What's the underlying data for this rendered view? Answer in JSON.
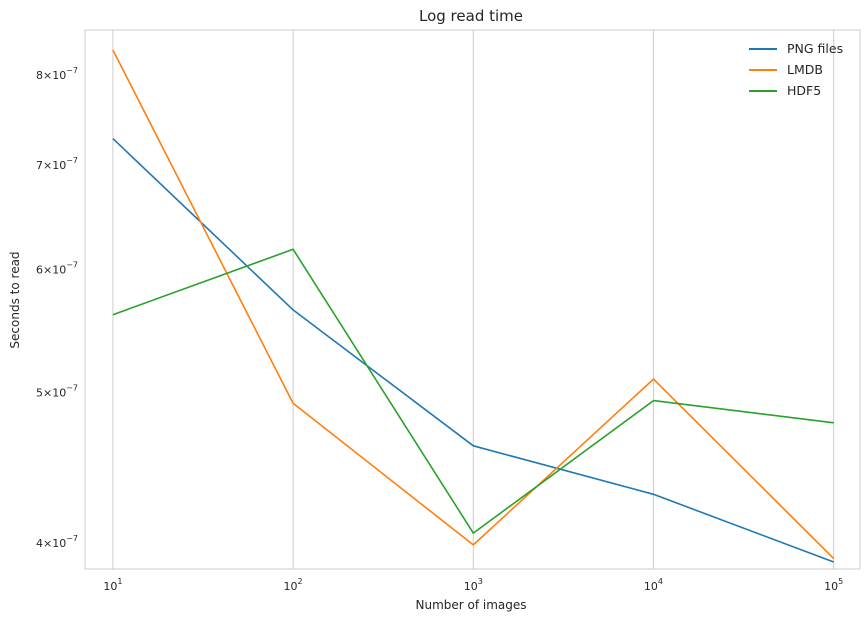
{
  "chart_data": {
    "type": "line",
    "title": "Log read time",
    "xlabel": "Number of images",
    "ylabel": "Seconds to read",
    "x": [
      10,
      100,
      1000,
      10000,
      100000
    ],
    "xscale": "log",
    "yscale": "log",
    "xlim": [
      7.0,
      140000
    ],
    "ylim": [
      3.85e-07,
      8.55e-07
    ],
    "x_ticks": [
      {
        "value": 10,
        "base": "10",
        "exp": "1"
      },
      {
        "value": 100,
        "base": "10",
        "exp": "2"
      },
      {
        "value": 1000,
        "base": "10",
        "exp": "3"
      },
      {
        "value": 10000,
        "base": "10",
        "exp": "4"
      },
      {
        "value": 100000,
        "base": "10",
        "exp": "5"
      }
    ],
    "y_ticks": [
      {
        "value": 4e-07,
        "mant": "4",
        "base": "10",
        "exp": "−7"
      },
      {
        "value": 5e-07,
        "mant": "5",
        "base": "10",
        "exp": "−7"
      },
      {
        "value": 6e-07,
        "mant": "6",
        "base": "10",
        "exp": "−7"
      },
      {
        "value": 7e-07,
        "mant": "7",
        "base": "10",
        "exp": "−7"
      },
      {
        "value": 8e-07,
        "mant": "8",
        "base": "10",
        "exp": "−7"
      }
    ],
    "grid": "x",
    "legend_position": "top-right",
    "series": [
      {
        "name": "PNG files",
        "color": "#1f77b4",
        "values": [
          7.28e-07,
          5.65e-07,
          4.62e-07,
          4.3e-07,
          3.89e-07
        ]
      },
      {
        "name": "LMDB",
        "color": "#ff7f0e",
        "values": [
          8.3e-07,
          4.92e-07,
          3.99e-07,
          5.1e-07,
          3.91e-07
        ]
      },
      {
        "name": "HDF5",
        "color": "#2ca02c",
        "values": [
          5.61e-07,
          6.18e-07,
          4.06e-07,
          4.94e-07,
          4.78e-07
        ]
      }
    ]
  }
}
